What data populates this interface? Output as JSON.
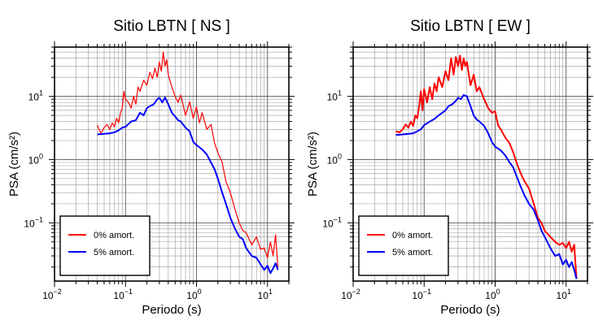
{
  "chart_data": [
    {
      "type": "line",
      "title": "Sitio LBTN [ NS ]",
      "xlabel": "Periodo (s)",
      "ylabel": "PSA (cm/s²)",
      "xscale": "log",
      "yscale": "log",
      "xlim": [
        0.01,
        20
      ],
      "ylim": [
        0.012,
        60
      ],
      "grid": true,
      "legend_position": "bottom-left",
      "x_ticks": [
        "10^-2",
        "10^-1",
        "10^0",
        "10^1"
      ],
      "y_ticks": [
        "10^-1",
        "10^0",
        "10^1"
      ],
      "series": [
        {
          "name": "0% amort.",
          "color": "#ff0000",
          "x": [
            0.04,
            0.045,
            0.05,
            0.055,
            0.06,
            0.065,
            0.07,
            0.075,
            0.08,
            0.085,
            0.09,
            0.095,
            0.1,
            0.11,
            0.12,
            0.13,
            0.14,
            0.15,
            0.16,
            0.18,
            0.2,
            0.22,
            0.24,
            0.26,
            0.28,
            0.3,
            0.32,
            0.34,
            0.36,
            0.38,
            0.4,
            0.45,
            0.5,
            0.55,
            0.6,
            0.7,
            0.8,
            0.9,
            1.0,
            1.1,
            1.2,
            1.4,
            1.6,
            1.8,
            2.0,
            2.3,
            2.6,
            3.0,
            3.5,
            4.0,
            4.5,
            5.0,
            6.0,
            7.0,
            8.0,
            9.0,
            10.0,
            11.0,
            12.0,
            13.0,
            14.0
          ],
          "y": [
            3.5,
            2.6,
            3.2,
            3.6,
            3.0,
            3.8,
            3.3,
            4.5,
            3.8,
            5.5,
            6.5,
            12,
            9,
            8,
            6.5,
            10,
            7.5,
            14,
            12,
            18,
            15,
            24,
            19,
            28,
            20,
            35,
            25,
            50,
            30,
            38,
            22,
            14,
            10,
            8,
            10.5,
            5,
            8.2,
            4.5,
            6.8,
            3.8,
            5.5,
            3.0,
            3.6,
            1.8,
            1.3,
            0.9,
            0.45,
            0.3,
            0.16,
            0.1,
            0.075,
            0.07,
            0.045,
            0.06,
            0.038,
            0.04,
            0.028,
            0.05,
            0.03,
            0.065,
            0.02
          ]
        },
        {
          "name": "5% amort.",
          "color": "#0000ff",
          "x": [
            0.04,
            0.05,
            0.06,
            0.07,
            0.08,
            0.09,
            0.1,
            0.12,
            0.14,
            0.16,
            0.18,
            0.2,
            0.22,
            0.25,
            0.28,
            0.3,
            0.33,
            0.36,
            0.4,
            0.45,
            0.5,
            0.55,
            0.6,
            0.7,
            0.8,
            0.9,
            1.0,
            1.2,
            1.4,
            1.6,
            1.8,
            2.0,
            2.3,
            2.6,
            3.0,
            3.5,
            4.0,
            4.5,
            5.0,
            6.0,
            7.0,
            8.0,
            9.0,
            10.0,
            11.0,
            12.0,
            13.0,
            14.0
          ],
          "y": [
            2.5,
            2.55,
            2.6,
            2.7,
            2.9,
            3.2,
            3.3,
            4.0,
            4.2,
            5.5,
            5.0,
            6.5,
            7.0,
            7.5,
            9.0,
            9.5,
            8.0,
            9.6,
            7.5,
            5.5,
            4.8,
            4.2,
            4.0,
            3.2,
            2.8,
            1.9,
            1.7,
            1.45,
            1.2,
            0.9,
            0.7,
            0.5,
            0.3,
            0.2,
            0.12,
            0.08,
            0.06,
            0.055,
            0.04,
            0.03,
            0.028,
            0.022,
            0.018,
            0.021,
            0.016,
            0.019,
            0.023,
            0.018
          ]
        }
      ]
    },
    {
      "type": "line",
      "title": "Sitio LBTN [ EW ]",
      "xlabel": "Periodo (s)",
      "ylabel": "PSA (cm/s²)",
      "xscale": "log",
      "yscale": "log",
      "xlim": [
        0.01,
        20
      ],
      "ylim": [
        0.012,
        60
      ],
      "grid": true,
      "legend_position": "bottom-left",
      "x_ticks": [
        "10^-2",
        "10^-1",
        "10^0",
        "10^1"
      ],
      "y_ticks": [
        "10^-1",
        "10^0",
        "10^1"
      ],
      "series": [
        {
          "name": "0% amort.",
          "color": "#ff0000",
          "x": [
            0.04,
            0.045,
            0.05,
            0.055,
            0.06,
            0.065,
            0.07,
            0.075,
            0.08,
            0.085,
            0.09,
            0.095,
            0.1,
            0.11,
            0.12,
            0.13,
            0.14,
            0.15,
            0.16,
            0.18,
            0.2,
            0.22,
            0.24,
            0.26,
            0.28,
            0.3,
            0.32,
            0.34,
            0.36,
            0.38,
            0.4,
            0.45,
            0.5,
            0.55,
            0.6,
            0.7,
            0.8,
            0.9,
            1.0,
            1.1,
            1.2,
            1.4,
            1.6,
            1.8,
            2.0,
            2.3,
            2.6,
            3.0,
            3.5,
            4.0,
            4.5,
            5.0,
            6.0,
            7.0,
            8.0,
            9.0,
            10.0,
            11.0,
            12.0,
            13.0,
            14.0
          ],
          "y": [
            2.8,
            2.7,
            3.0,
            3.6,
            3.2,
            4.0,
            3.4,
            5.0,
            4.5,
            7.0,
            12,
            6.0,
            13,
            8.0,
            14,
            9.0,
            16,
            12,
            20,
            14,
            25,
            18,
            40,
            22,
            42,
            30,
            44,
            26,
            40,
            30,
            35,
            15,
            22,
            12,
            14,
            9.0,
            6.5,
            5.5,
            5.8,
            3.5,
            3.0,
            2.2,
            1.8,
            1.3,
            0.9,
            0.6,
            0.45,
            0.35,
            0.2,
            0.12,
            0.1,
            0.075,
            0.06,
            0.05,
            0.045,
            0.048,
            0.04,
            0.05,
            0.035,
            0.045,
            0.013
          ]
        },
        {
          "name": "5% amort.",
          "color": "#0000ff",
          "x": [
            0.04,
            0.05,
            0.06,
            0.07,
            0.08,
            0.09,
            0.1,
            0.12,
            0.14,
            0.16,
            0.18,
            0.2,
            0.22,
            0.25,
            0.28,
            0.3,
            0.33,
            0.36,
            0.4,
            0.45,
            0.5,
            0.55,
            0.6,
            0.7,
            0.8,
            0.9,
            1.0,
            1.2,
            1.4,
            1.6,
            1.8,
            2.0,
            2.3,
            2.6,
            3.0,
            3.5,
            4.0,
            4.5,
            5.0,
            6.0,
            7.0,
            8.0,
            9.0,
            10.0,
            11.0,
            12.0,
            13.0,
            14.0
          ],
          "y": [
            2.45,
            2.5,
            2.55,
            2.6,
            2.8,
            3.0,
            3.5,
            4.0,
            4.4,
            5.0,
            5.5,
            6.0,
            7.0,
            7.5,
            8.5,
            9.5,
            9.0,
            10.5,
            10.0,
            7.0,
            5.0,
            4.3,
            4.0,
            3.4,
            2.6,
            1.9,
            1.6,
            1.4,
            1.15,
            0.9,
            0.75,
            0.55,
            0.37,
            0.27,
            0.2,
            0.16,
            0.11,
            0.075,
            0.06,
            0.04,
            0.03,
            0.032,
            0.022,
            0.026,
            0.02,
            0.024,
            0.018,
            0.013
          ]
        }
      ]
    }
  ]
}
